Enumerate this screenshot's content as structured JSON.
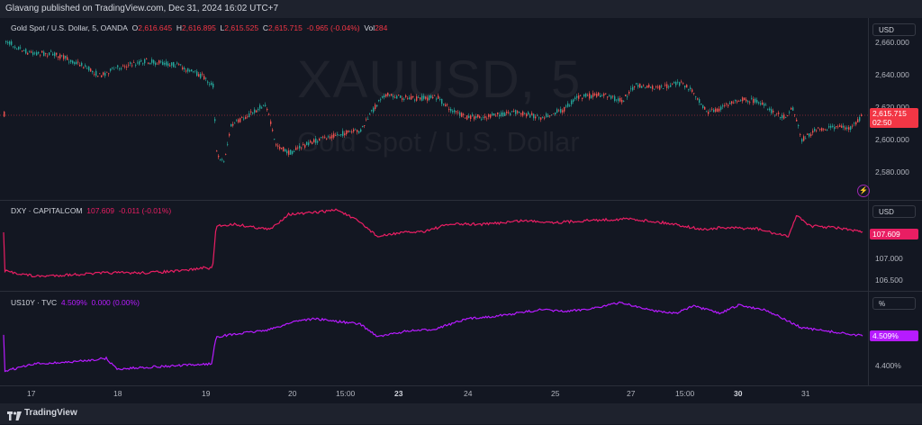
{
  "header": {
    "publish_text": "Glavang published on TradingView.com, Dec 31, 2024 16:02 UTC+7"
  },
  "gold": {
    "legend_name": "Gold Spot / U.S. Dollar, 5, OANDA",
    "O_label": "O",
    "O": "2,616.645",
    "H_label": "H",
    "H": "2,616.895",
    "L_label": "L",
    "L": "2,615.525",
    "C_label": "C",
    "C": "2,615.715",
    "change": "-0.965 (-0.04%)",
    "vol_label": "Vol",
    "vol": "284",
    "unit": "USD",
    "ticks": [
      "2,660.000",
      "2,640.000",
      "2,620.000",
      "2,600.000",
      "2,580.000"
    ],
    "last_price": "2,615.715",
    "countdown": "02:50",
    "watermark_symbol": "XAUUSD, 5",
    "watermark_name": "Gold Spot / U.S. Dollar"
  },
  "dxy": {
    "legend_name": "DXY · CAPITALCOM",
    "value": "107.609",
    "change": "-0.011 (-0.01%)",
    "unit": "USD",
    "ticks": [
      "107.000",
      "106.500"
    ],
    "last_value": "107.609"
  },
  "us10y": {
    "legend_name": "US10Y · TVC",
    "value": "4.509%",
    "change": "0.000 (0.00%)",
    "unit": "%",
    "ticks": [
      "4.400%"
    ],
    "last_value": "4.509%"
  },
  "time_axis": [
    "17",
    "18",
    "19",
    "20",
    "15:00",
    "23",
    "24",
    "25",
    "27",
    "15:00",
    "30",
    "31"
  ],
  "footer": {
    "brand": "TradingView"
  },
  "colors": {
    "up": "#26a69a",
    "down": "#ef5350",
    "dxy": "#e91e63",
    "us10y": "#b61bff",
    "bg": "#131722"
  }
}
